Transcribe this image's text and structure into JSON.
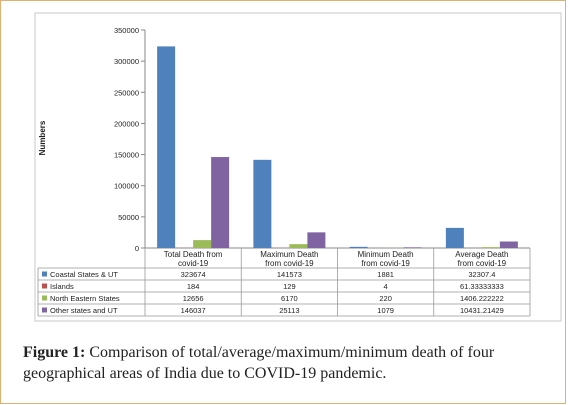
{
  "chart_data": {
    "type": "bar",
    "ylabel": "Numbers",
    "ylim": [
      0,
      350000
    ],
    "yticks": [
      0,
      50000,
      100000,
      150000,
      200000,
      250000,
      300000,
      350000
    ],
    "categories": [
      [
        "Total Death from",
        "covid-19"
      ],
      [
        "Maximum Death",
        "from covid-19"
      ],
      [
        "Minimum Death",
        "from covid-19"
      ],
      [
        "Average Death",
        "from covid-19"
      ]
    ],
    "series": [
      {
        "name": "Coastal States & UT",
        "color": "#4f81bd",
        "values": [
          323674,
          141573,
          1881,
          32307.4
        ],
        "labels": [
          "323674",
          "141573",
          "1881",
          "32307.4"
        ]
      },
      {
        "name": "Islands",
        "color": "#c0504d",
        "values": [
          184,
          129,
          4,
          61.33333333
        ],
        "labels": [
          "184",
          "129",
          "4",
          "61.33333333"
        ]
      },
      {
        "name": "North Eastern States",
        "color": "#9bbb59",
        "values": [
          12656,
          6170,
          220,
          1406.222222
        ],
        "labels": [
          "12656",
          "6170",
          "220",
          "1406.222222"
        ]
      },
      {
        "name": "Other states and UT",
        "color": "#8064a2",
        "values": [
          146037,
          25113,
          1079,
          10431.21429
        ],
        "labels": [
          "146037",
          "25113",
          "1079",
          "10431.21429"
        ]
      }
    ],
    "grid": false,
    "legend": "data-table"
  },
  "caption": {
    "label": "Figure 1:",
    "text": " Comparison of total/average/maximum/minimum death of  four geographical areas of India due to COVID-19 pandemic."
  }
}
